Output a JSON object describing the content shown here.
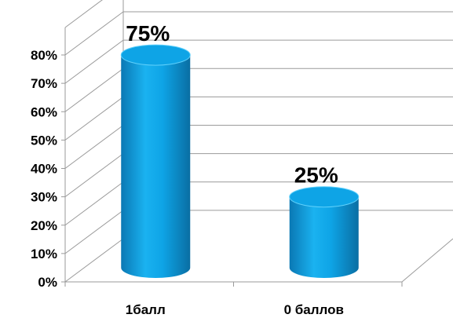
{
  "chart_data": {
    "type": "bar",
    "style": "3d-cylinder",
    "categories": [
      "1балл",
      "0 баллов"
    ],
    "values": [
      75,
      25
    ],
    "data_labels": [
      "75%",
      "25%"
    ],
    "ylim": [
      0,
      80
    ],
    "yticks": [
      0,
      10,
      20,
      30,
      40,
      50,
      60,
      70,
      80
    ],
    "ytick_labels": [
      "0%",
      "10%",
      "20%",
      "30%",
      "40%",
      "50%",
      "60%",
      "70%",
      "80%"
    ],
    "grid": true,
    "legend": "none",
    "title": "",
    "xlabel": "",
    "ylabel": "",
    "colors": {
      "bar_main": "#0ea4e6",
      "bar_light": "#5fd0fb",
      "bar_dark": "#0a72a8",
      "grid": "#9a9a9a"
    }
  }
}
